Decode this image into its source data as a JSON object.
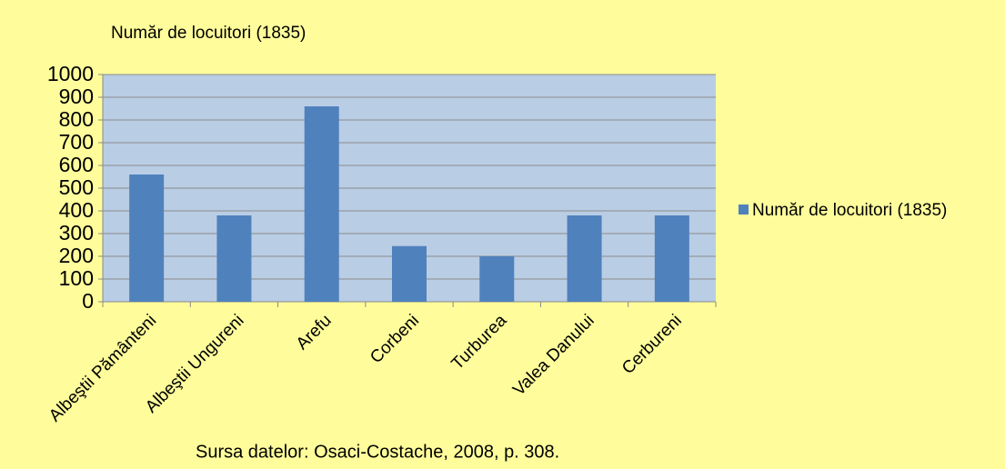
{
  "chart_data": {
    "type": "bar",
    "title": "Număr de locuitori (1835)",
    "categories": [
      "Albeştii Pământeni",
      "Albeştii Ungureni",
      "Arefu",
      "Corbeni",
      "Turburea",
      "Valea Danului",
      "Cerbureni"
    ],
    "series": [
      {
        "name": "Număr de locuitori (1835)",
        "color": "#4f81bd",
        "values": [
          560,
          380,
          860,
          245,
          200,
          380,
          380
        ]
      }
    ],
    "ylim": [
      0,
      1000
    ],
    "yticks": [
      0,
      100,
      200,
      300,
      400,
      500,
      600,
      700,
      800,
      900,
      1000
    ],
    "grid": true,
    "legend": "right",
    "source": "Sursa datelor: Osaci-Costache, 2008, p.  308."
  }
}
